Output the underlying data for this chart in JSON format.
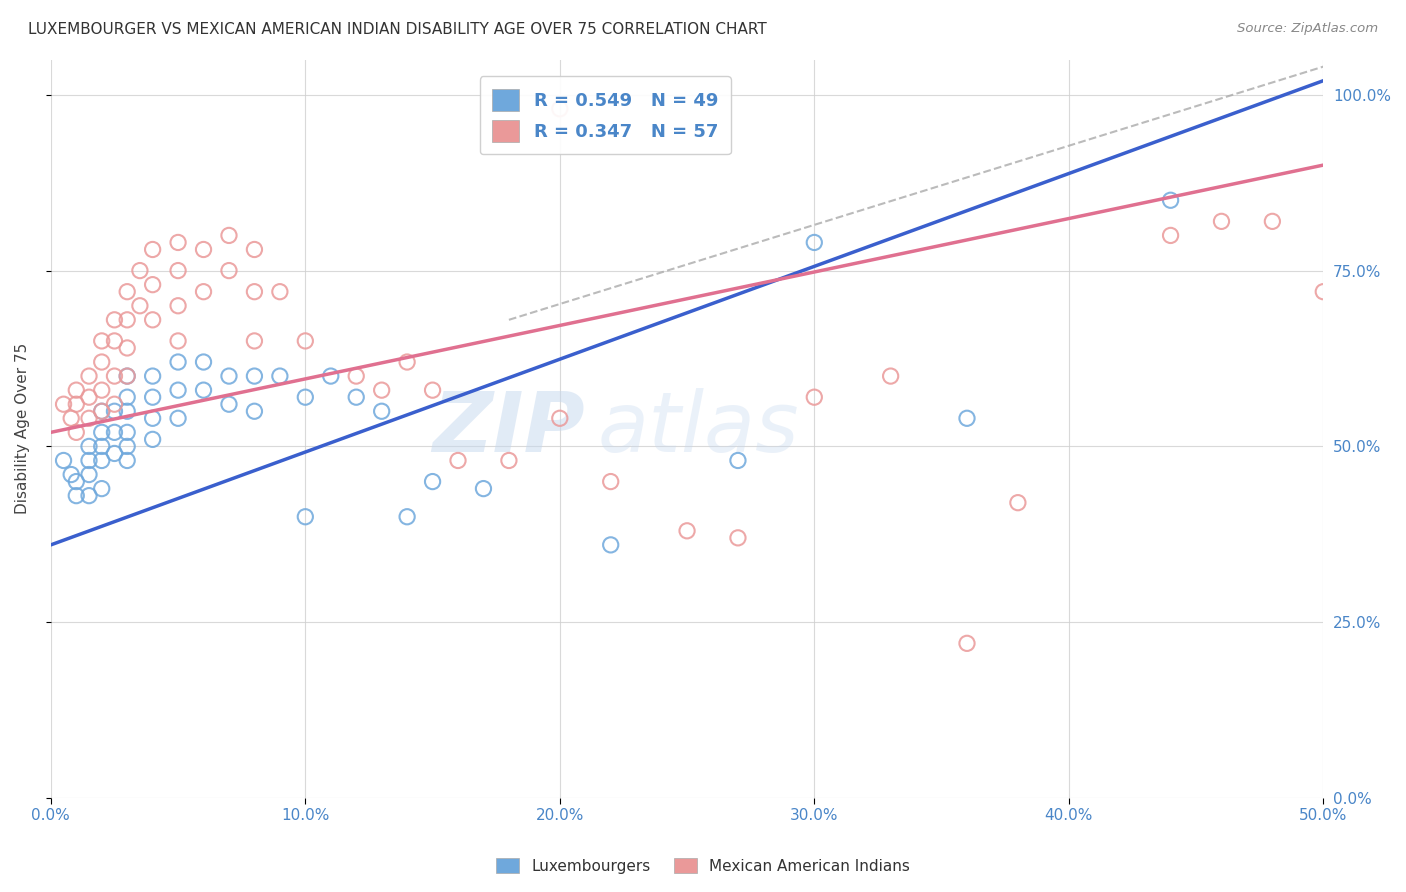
{
  "title": "LUXEMBOURGER VS MEXICAN AMERICAN INDIAN DISABILITY AGE OVER 75 CORRELATION CHART",
  "source": "Source: ZipAtlas.com",
  "ylabel": "Disability Age Over 75",
  "xlim": [
    0.0,
    0.5
  ],
  "ylim": [
    0.0,
    1.05
  ],
  "blue_color": "#6fa8dc",
  "pink_color": "#ea9999",
  "blue_line_color": "#3a5fcd",
  "pink_line_color": "#e07090",
  "watermark_zip": "ZIP",
  "watermark_atlas": "atlas",
  "blue_scatter_x": [
    0.005,
    0.008,
    0.01,
    0.01,
    0.015,
    0.015,
    0.015,
    0.015,
    0.02,
    0.02,
    0.02,
    0.02,
    0.02,
    0.025,
    0.025,
    0.025,
    0.03,
    0.03,
    0.03,
    0.03,
    0.03,
    0.03,
    0.04,
    0.04,
    0.04,
    0.04,
    0.05,
    0.05,
    0.05,
    0.06,
    0.06,
    0.07,
    0.07,
    0.08,
    0.08,
    0.09,
    0.1,
    0.1,
    0.11,
    0.12,
    0.13,
    0.14,
    0.15,
    0.17,
    0.22,
    0.27,
    0.3,
    0.36,
    0.44
  ],
  "blue_scatter_y": [
    0.48,
    0.46,
    0.45,
    0.43,
    0.5,
    0.48,
    0.46,
    0.43,
    0.55,
    0.52,
    0.5,
    0.48,
    0.44,
    0.55,
    0.52,
    0.49,
    0.6,
    0.57,
    0.55,
    0.52,
    0.5,
    0.48,
    0.6,
    0.57,
    0.54,
    0.51,
    0.62,
    0.58,
    0.54,
    0.62,
    0.58,
    0.6,
    0.56,
    0.6,
    0.55,
    0.6,
    0.57,
    0.4,
    0.6,
    0.57,
    0.55,
    0.4,
    0.45,
    0.44,
    0.36,
    0.48,
    0.79,
    0.54,
    0.85
  ],
  "pink_scatter_x": [
    0.005,
    0.008,
    0.01,
    0.01,
    0.01,
    0.015,
    0.015,
    0.015,
    0.02,
    0.02,
    0.02,
    0.02,
    0.025,
    0.025,
    0.025,
    0.025,
    0.03,
    0.03,
    0.03,
    0.03,
    0.035,
    0.035,
    0.04,
    0.04,
    0.04,
    0.05,
    0.05,
    0.05,
    0.05,
    0.06,
    0.06,
    0.07,
    0.07,
    0.08,
    0.08,
    0.08,
    0.09,
    0.1,
    0.12,
    0.13,
    0.14,
    0.15,
    0.16,
    0.18,
    0.2,
    0.2,
    0.22,
    0.25,
    0.27,
    0.3,
    0.33,
    0.36,
    0.38,
    0.44,
    0.46,
    0.48,
    0.5
  ],
  "pink_scatter_y": [
    0.56,
    0.54,
    0.58,
    0.56,
    0.52,
    0.6,
    0.57,
    0.54,
    0.65,
    0.62,
    0.58,
    0.55,
    0.68,
    0.65,
    0.6,
    0.56,
    0.72,
    0.68,
    0.64,
    0.6,
    0.75,
    0.7,
    0.78,
    0.73,
    0.68,
    0.79,
    0.75,
    0.7,
    0.65,
    0.78,
    0.72,
    0.8,
    0.75,
    0.78,
    0.72,
    0.65,
    0.72,
    0.65,
    0.6,
    0.58,
    0.62,
    0.58,
    0.48,
    0.48,
    0.54,
    0.98,
    0.45,
    0.38,
    0.37,
    0.57,
    0.6,
    0.22,
    0.42,
    0.8,
    0.82,
    0.82,
    0.72
  ],
  "blue_line_pts": [
    [
      0.0,
      0.36
    ],
    [
      0.5,
      1.02
    ]
  ],
  "pink_line_pts": [
    [
      0.0,
      0.52
    ],
    [
      0.5,
      0.9
    ]
  ],
  "dash_line_pts": [
    [
      0.18,
      0.68
    ],
    [
      0.5,
      1.04
    ]
  ],
  "xtick_vals": [
    0.0,
    0.1,
    0.2,
    0.3,
    0.4,
    0.5
  ],
  "xtick_labels": [
    "0.0%",
    "10.0%",
    "20.0%",
    "30.0%",
    "40.0%",
    "50.0%"
  ],
  "ytick_vals": [
    0.0,
    0.25,
    0.5,
    0.75,
    1.0
  ],
  "ytick_labels": [
    "0.0%",
    "25.0%",
    "50.0%",
    "75.0%",
    "100.0%"
  ],
  "tick_color": "#4a86c8",
  "legend1_R": "0.549",
  "legend1_N": "49",
  "legend2_R": "0.347",
  "legend2_N": "57"
}
